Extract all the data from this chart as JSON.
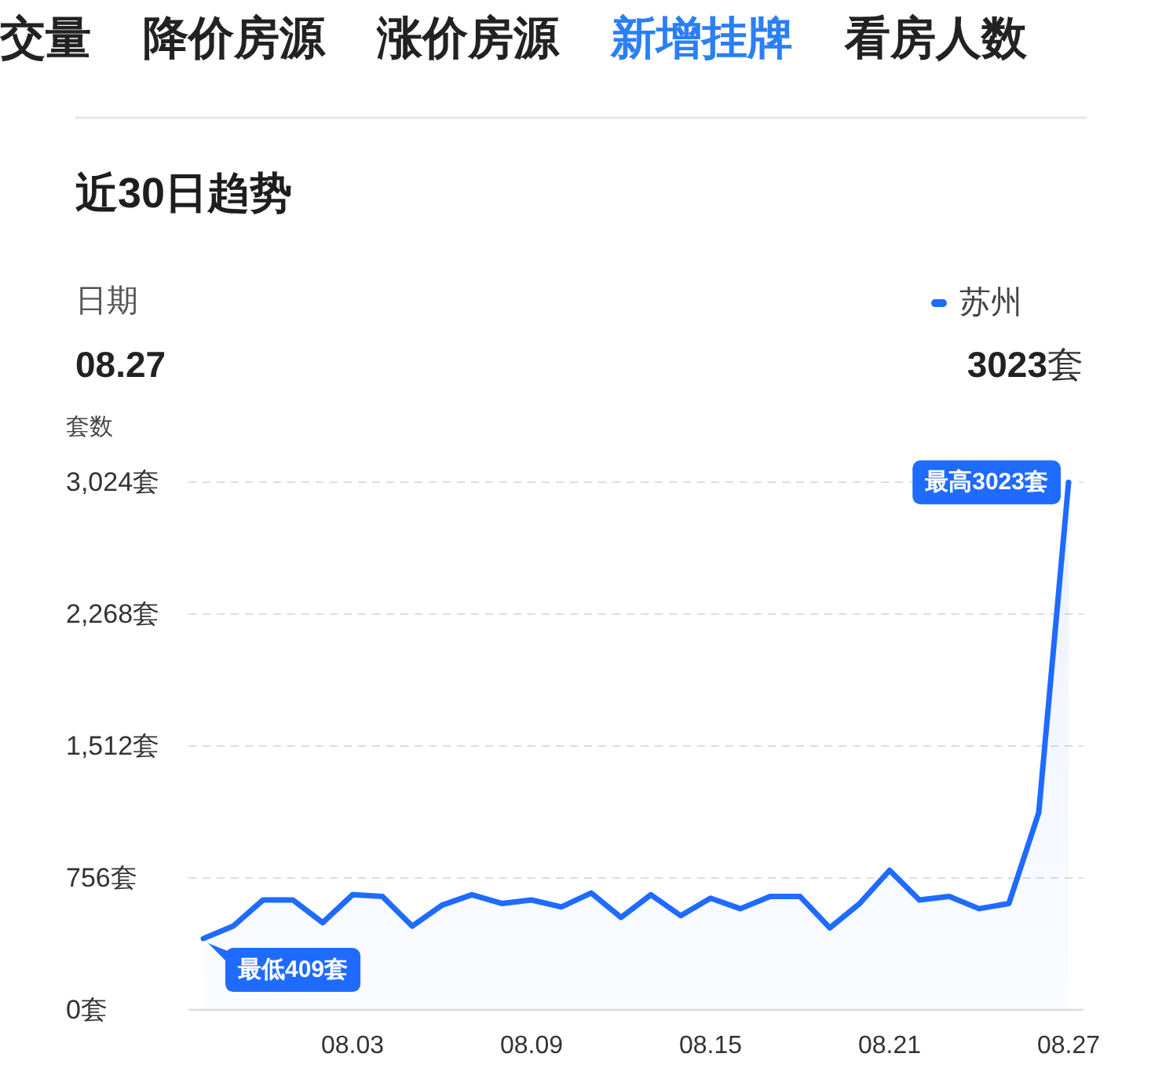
{
  "chart_data": {
    "type": "area",
    "title": "近30日趋势",
    "ylabel": "套数",
    "annotations": [
      "交量",
      "降价房源",
      "涨价房源",
      "新增挂牌",
      "看房人数",
      "日期",
      "08.27",
      "3023套"
    ],
    "categories": [
      null,
      null,
      null,
      null,
      null,
      "08.03",
      null,
      null,
      null,
      null,
      null,
      "08.09",
      null,
      null,
      null,
      null,
      null,
      "08.15",
      null,
      null,
      null,
      null,
      null,
      "08.21",
      null,
      null,
      null,
      null,
      null,
      "08.27"
    ],
    "series": [
      {
        "name": "苏州",
        "color": "#1f6bff",
        "values": [
          409,
          480,
          630,
          630,
          500,
          660,
          650,
          480,
          600,
          660,
          610,
          630,
          590,
          670,
          530,
          660,
          540,
          640,
          580,
          650,
          650,
          470,
          610,
          800,
          630,
          650,
          580,
          610,
          1130,
          3023
        ],
        "value_labels": [
          "最低409套",
          null,
          null,
          null,
          null,
          null,
          null,
          null,
          null,
          null,
          null,
          null,
          null,
          null,
          null,
          null,
          null,
          null,
          null,
          null,
          null,
          null,
          null,
          null,
          null,
          null,
          null,
          null,
          null,
          "最高3023套"
        ]
      }
    ],
    "ylim": [
      0,
      3024
    ],
    "yticks": [
      {
        "value": 0,
        "label": "0套"
      },
      {
        "value": 756,
        "label": "756套"
      },
      {
        "value": 1512,
        "label": "1,512套"
      },
      {
        "value": 2268,
        "label": "2,268套"
      },
      {
        "value": 3024,
        "label": "3,024套"
      }
    ],
    "grid": "y",
    "legend": "top right"
  }
}
